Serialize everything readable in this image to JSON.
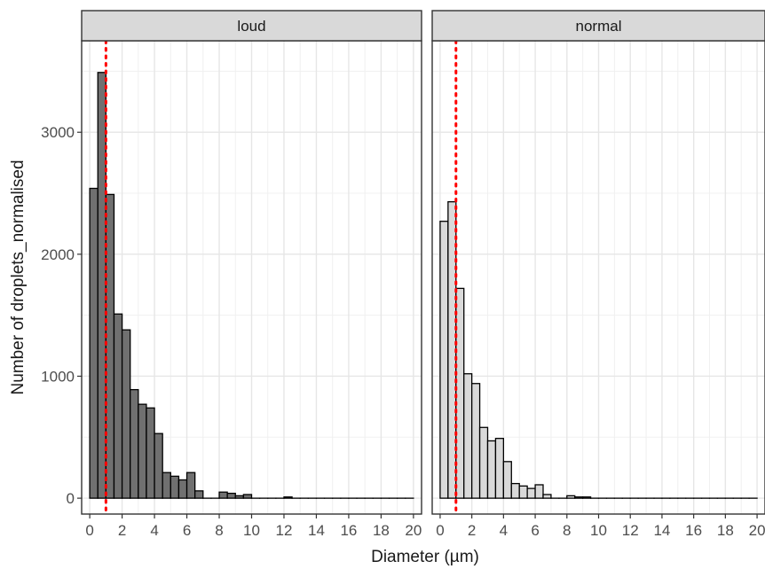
{
  "chart_data": {
    "type": "bar",
    "subtype": "histogram",
    "facets": [
      "loud",
      "normal"
    ],
    "xlabel": "Diameter (µm)",
    "ylabel": "Number of droplets_normalised",
    "xlim": [
      -0.5,
      20.5
    ],
    "ylim": [
      -130,
      3750
    ],
    "x_ticks": [
      0,
      2,
      4,
      6,
      8,
      10,
      12,
      14,
      16,
      18,
      20
    ],
    "y_ticks": [
      0,
      1000,
      2000,
      3000
    ],
    "bin_width": 0.5,
    "reference_line": {
      "x": 1,
      "style": "dotted",
      "color": "#ff0000"
    },
    "grid": true,
    "fill_colors": {
      "loud": "#707070",
      "normal": "#d9d9d9"
    },
    "series": [
      {
        "facet": "loud",
        "bin_starts": [
          0,
          0.5,
          1,
          1.5,
          2,
          2.5,
          3,
          3.5,
          4,
          4.5,
          5,
          5.5,
          6,
          6.5,
          7,
          7.5,
          8,
          8.5,
          9,
          9.5,
          10,
          10.5,
          11,
          11.5,
          12,
          12.5,
          13,
          13.5,
          14,
          14.5,
          15,
          15.5,
          16,
          16.5,
          17,
          17.5,
          18,
          18.5,
          19,
          19.5
        ],
        "values": [
          2540,
          3490,
          2490,
          1510,
          1380,
          890,
          770,
          740,
          530,
          210,
          180,
          150,
          210,
          60,
          0,
          0,
          50,
          40,
          20,
          30,
          0,
          0,
          0,
          0,
          10,
          0,
          0,
          0,
          0,
          0,
          0,
          0,
          0,
          0,
          0,
          0,
          0,
          0,
          0,
          0
        ]
      },
      {
        "facet": "normal",
        "bin_starts": [
          0,
          0.5,
          1,
          1.5,
          2,
          2.5,
          3,
          3.5,
          4,
          4.5,
          5,
          5.5,
          6,
          6.5,
          7,
          7.5,
          8,
          8.5,
          9,
          9.5,
          10,
          10.5,
          11,
          11.5,
          12,
          12.5,
          13,
          13.5,
          14,
          14.5,
          15,
          15.5,
          16,
          16.5,
          17,
          17.5,
          18,
          18.5,
          19,
          19.5
        ],
        "values": [
          2270,
          2430,
          1720,
          1020,
          940,
          580,
          470,
          490,
          300,
          120,
          100,
          80,
          110,
          30,
          0,
          0,
          20,
          10,
          10,
          0,
          0,
          0,
          0,
          0,
          0,
          0,
          0,
          0,
          0,
          0,
          0,
          0,
          0,
          0,
          0,
          0,
          0,
          0,
          0,
          0
        ]
      }
    ]
  }
}
